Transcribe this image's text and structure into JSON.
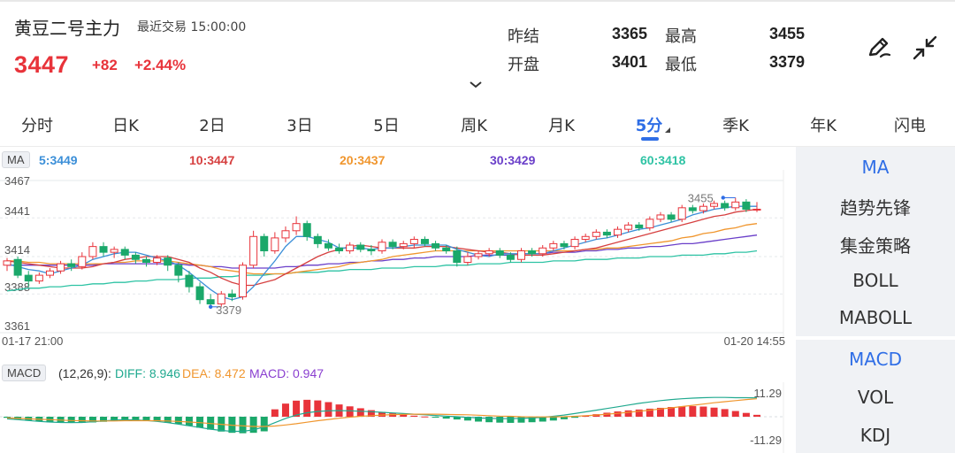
{
  "header": {
    "title": "黄豆二号主力",
    "trade_status": "最近交易  15:00:00",
    "price": "3447",
    "change": "+82",
    "change_pct": "+2.44%"
  },
  "stats": {
    "prev_settle_label": "昨结",
    "prev_settle_value": "3365",
    "high_label": "最高",
    "high_value": "3455",
    "open_label": "开盘",
    "open_value": "3401",
    "low_label": "最低",
    "low_value": "3379"
  },
  "icons": {
    "draw": "pen-draw-icon",
    "fullscreen": "collapse-arrows-icon",
    "expand": "chevron-down-icon"
  },
  "tabs": [
    "分时",
    "日K",
    "2日",
    "3日",
    "5日",
    "周K",
    "月K",
    "5分",
    "季K",
    "年K",
    "闪电"
  ],
  "active_tab": "5分",
  "ma": {
    "badge": "MA",
    "ma5": "5:3449",
    "ma10": "10:3447",
    "ma20": "20:3437",
    "ma30": "30:3429",
    "ma60": "60:3418"
  },
  "colors": {
    "up": "#e8333a",
    "down": "#1aa86a",
    "accent": "#2f6ee6",
    "ma5": "#3b8fd8",
    "ma10": "#d64040",
    "ma20": "#f0962e",
    "ma30": "#6a3fc9",
    "ma60": "#2ec3a4"
  },
  "chart_data": [
    {
      "type": "candlestick",
      "title": "",
      "y_ticks": [
        "3467",
        "3441",
        "3414",
        "3388",
        "3361"
      ],
      "ylim": [
        3361,
        3467
      ],
      "x_start": "01-17 21:00",
      "x_end": "01-20 14:55",
      "high_marker": "3455",
      "low_marker": "3379",
      "candles": [
        [
          3408,
          3411,
          3404,
          3413
        ],
        [
          3412,
          3401,
          3399,
          3414
        ],
        [
          3401,
          3397,
          3393,
          3404
        ],
        [
          3397,
          3401,
          3395,
          3403
        ],
        [
          3401,
          3404,
          3399,
          3406
        ],
        [
          3404,
          3409,
          3402,
          3411
        ],
        [
          3409,
          3407,
          3404,
          3412
        ],
        [
          3407,
          3414,
          3405,
          3417
        ],
        [
          3414,
          3421,
          3412,
          3424
        ],
        [
          3421,
          3417,
          3414,
          3424
        ],
        [
          3417,
          3419,
          3413,
          3421
        ],
        [
          3419,
          3415,
          3412,
          3421
        ],
        [
          3415,
          3412,
          3409,
          3417
        ],
        [
          3412,
          3410,
          3407,
          3414
        ],
        [
          3410,
          3413,
          3408,
          3415
        ],
        [
          3413,
          3408,
          3404,
          3415
        ],
        [
          3408,
          3401,
          3396,
          3410
        ],
        [
          3401,
          3393,
          3389,
          3404
        ],
        [
          3393,
          3384,
          3381,
          3396
        ],
        [
          3384,
          3381,
          3379,
          3388
        ],
        [
          3381,
          3388,
          3379,
          3390
        ],
        [
          3388,
          3386,
          3383,
          3391
        ],
        [
          3386,
          3408,
          3384,
          3410
        ],
        [
          3408,
          3428,
          3406,
          3432
        ],
        [
          3428,
          3418,
          3414,
          3430
        ],
        [
          3418,
          3427,
          3416,
          3431
        ],
        [
          3427,
          3432,
          3424,
          3435
        ],
        [
          3432,
          3437,
          3429,
          3442
        ],
        [
          3437,
          3428,
          3425,
          3439
        ],
        [
          3428,
          3423,
          3420,
          3430
        ],
        [
          3423,
          3420,
          3418,
          3426
        ],
        [
          3420,
          3418,
          3416,
          3423
        ],
        [
          3418,
          3422,
          3416,
          3424
        ],
        [
          3422,
          3419,
          3417,
          3424
        ],
        [
          3419,
          3418,
          3415,
          3422
        ],
        [
          3418,
          3424,
          3416,
          3426
        ],
        [
          3424,
          3421,
          3419,
          3426
        ],
        [
          3421,
          3423,
          3419,
          3425
        ],
        [
          3423,
          3426,
          3420,
          3428
        ],
        [
          3426,
          3423,
          3421,
          3428
        ],
        [
          3423,
          3420,
          3418,
          3425
        ],
        [
          3420,
          3418,
          3416,
          3422
        ],
        [
          3418,
          3410,
          3407,
          3421
        ],
        [
          3410,
          3414,
          3408,
          3417
        ],
        [
          3414,
          3416,
          3412,
          3418
        ],
        [
          3416,
          3418,
          3414,
          3420
        ],
        [
          3418,
          3415,
          3413,
          3420
        ],
        [
          3415,
          3412,
          3410,
          3417
        ],
        [
          3412,
          3418,
          3410,
          3420
        ],
        [
          3418,
          3416,
          3414,
          3420
        ],
        [
          3416,
          3420,
          3414,
          3422
        ],
        [
          3420,
          3423,
          3418,
          3425
        ],
        [
          3423,
          3421,
          3419,
          3425
        ],
        [
          3421,
          3426,
          3419,
          3428
        ],
        [
          3426,
          3428,
          3424,
          3430
        ],
        [
          3428,
          3431,
          3426,
          3433
        ],
        [
          3431,
          3429,
          3427,
          3433
        ],
        [
          3429,
          3433,
          3427,
          3435
        ],
        [
          3433,
          3436,
          3431,
          3438
        ],
        [
          3436,
          3434,
          3432,
          3438
        ],
        [
          3434,
          3440,
          3432,
          3442
        ],
        [
          3440,
          3443,
          3438,
          3445
        ],
        [
          3443,
          3440,
          3438,
          3445
        ],
        [
          3440,
          3448,
          3438,
          3450
        ],
        [
          3448,
          3446,
          3444,
          3450
        ],
        [
          3446,
          3449,
          3444,
          3451
        ],
        [
          3449,
          3451,
          3447,
          3453
        ],
        [
          3451,
          3448,
          3446,
          3453
        ],
        [
          3448,
          3452,
          3446,
          3455
        ],
        [
          3452,
          3447,
          3445,
          3454
        ],
        [
          3447,
          3447,
          3445,
          3452
        ]
      ],
      "ma5": [
        3409,
        3407,
        3405,
        3404,
        3402,
        3404,
        3406,
        3408,
        3412,
        3414,
        3416,
        3417,
        3417,
        3415,
        3413,
        3411,
        3408,
        3403,
        3397,
        3391,
        3386,
        3384,
        3386,
        3393,
        3402,
        3411,
        3421,
        3428,
        3428,
        3426,
        3424,
        3420,
        3420,
        3420,
        3419,
        3420,
        3420,
        3421,
        3422,
        3422,
        3422,
        3422,
        3419,
        3417,
        3415,
        3414,
        3416,
        3416,
        3416,
        3416,
        3416,
        3418,
        3420,
        3422,
        3424,
        3426,
        3427,
        3429,
        3431,
        3433,
        3434,
        3436,
        3438,
        3440,
        3443,
        3445,
        3447,
        3448,
        3449,
        3449,
        3449
      ],
      "ma10": [
        3411,
        3410,
        3409,
        3408,
        3407,
        3406,
        3406,
        3406,
        3407,
        3409,
        3410,
        3412,
        3413,
        3414,
        3414,
        3414,
        3412,
        3410,
        3406,
        3403,
        3399,
        3396,
        3394,
        3394,
        3396,
        3398,
        3402,
        3406,
        3410,
        3414,
        3417,
        3419,
        3421,
        3422,
        3421,
        3420,
        3420,
        3420,
        3420,
        3421,
        3421,
        3421,
        3420,
        3419,
        3418,
        3417,
        3417,
        3416,
        3415,
        3415,
        3415,
        3416,
        3417,
        3418,
        3419,
        3420,
        3422,
        3424,
        3426,
        3428,
        3430,
        3432,
        3434,
        3436,
        3438,
        3440,
        3442,
        3443,
        3445,
        3446,
        3447
      ],
      "ma20": [
        3411,
        3411,
        3410,
        3410,
        3409,
        3409,
        3409,
        3409,
        3409,
        3409,
        3410,
        3410,
        3411,
        3411,
        3411,
        3411,
        3410,
        3409,
        3408,
        3407,
        3405,
        3404,
        3403,
        3402,
        3402,
        3402,
        3402,
        3403,
        3404,
        3405,
        3406,
        3407,
        3409,
        3410,
        3411,
        3412,
        3414,
        3415,
        3416,
        3417,
        3418,
        3418,
        3418,
        3418,
        3418,
        3418,
        3418,
        3418,
        3418,
        3418,
        3418,
        3418,
        3418,
        3418,
        3419,
        3419,
        3420,
        3420,
        3421,
        3422,
        3423,
        3424,
        3425,
        3427,
        3428,
        3430,
        3431,
        3433,
        3434,
        3436,
        3437
      ],
      "ma30": [
        3408,
        3408,
        3408,
        3408,
        3408,
        3408,
        3408,
        3408,
        3408,
        3409,
        3409,
        3409,
        3409,
        3409,
        3409,
        3409,
        3409,
        3408,
        3408,
        3407,
        3407,
        3406,
        3406,
        3406,
        3406,
        3406,
        3407,
        3407,
        3408,
        3408,
        3409,
        3409,
        3410,
        3410,
        3411,
        3411,
        3412,
        3412,
        3413,
        3413,
        3414,
        3414,
        3414,
        3414,
        3415,
        3415,
        3415,
        3415,
        3416,
        3416,
        3416,
        3417,
        3417,
        3417,
        3418,
        3418,
        3419,
        3419,
        3420,
        3420,
        3421,
        3421,
        3422,
        3423,
        3423,
        3424,
        3425,
        3426,
        3427,
        3428,
        3429
      ],
      "ma60": [
        3390,
        3391,
        3392,
        3392,
        3393,
        3393,
        3394,
        3394,
        3395,
        3395,
        3396,
        3396,
        3397,
        3397,
        3398,
        3398,
        3398,
        3399,
        3399,
        3399,
        3400,
        3400,
        3401,
        3401,
        3401,
        3402,
        3402,
        3403,
        3403,
        3403,
        3404,
        3404,
        3405,
        3405,
        3405,
        3406,
        3406,
        3406,
        3407,
        3407,
        3407,
        3408,
        3408,
        3408,
        3409,
        3409,
        3409,
        3410,
        3410,
        3410,
        3410,
        3411,
        3411,
        3411,
        3412,
        3412,
        3412,
        3413,
        3413,
        3413,
        3414,
        3414,
        3414,
        3415,
        3415,
        3415,
        3416,
        3416,
        3417,
        3417,
        3418
      ]
    },
    {
      "type": "bar",
      "title": "MACD",
      "params": "(12,26,9):",
      "diff": "DIFF: 8.946",
      "dea": "DEA: 8.472",
      "macd": "MACD: 0.947",
      "y_ticks": [
        "11.29",
        "-11.29"
      ],
      "ylim": [
        -11.29,
        11.29
      ],
      "histogram": [
        -0.5,
        -1.2,
        -1.8,
        -2.3,
        -2.6,
        -2.8,
        -2.9,
        -2.9,
        -2.7,
        -2.4,
        -2.0,
        -1.8,
        -1.8,
        -2.0,
        -2.3,
        -2.8,
        -3.5,
        -4.3,
        -5.2,
        -6.1,
        -7.0,
        -7.6,
        -7.8,
        -7.6,
        -6.9,
        3.5,
        6.2,
        7.6,
        8.0,
        7.7,
        6.9,
        5.8,
        4.9,
        4.0,
        3.1,
        2.3,
        1.6,
        1.0,
        0.5,
        0.1,
        -0.4,
        -0.9,
        -1.3,
        -1.8,
        -2.3,
        -2.6,
        -2.8,
        -2.9,
        -2.8,
        -2.6,
        -2.3,
        -1.8,
        -1.2,
        -0.5,
        0.4,
        1.2,
        1.9,
        2.5,
        3.0,
        3.4,
        3.8,
        4.2,
        4.6,
        4.9,
        5.0,
        4.8,
        4.3,
        3.6,
        2.7,
        1.8,
        0.9
      ],
      "diff_line": [
        -1.0,
        -1.4,
        -1.8,
        -2.2,
        -2.5,
        -2.7,
        -2.8,
        -2.7,
        -2.4,
        -2.0,
        -1.6,
        -1.4,
        -1.5,
        -1.8,
        -2.2,
        -2.8,
        -3.5,
        -4.3,
        -5.1,
        -5.9,
        -6.5,
        -6.9,
        -6.9,
        -6.2,
        -4.8,
        -2.8,
        -0.8,
        0.8,
        1.9,
        2.5,
        2.8,
        2.9,
        2.8,
        2.6,
        2.4,
        2.1,
        1.8,
        1.5,
        1.2,
        0.9,
        0.6,
        0.3,
        0.0,
        -0.3,
        -0.6,
        -0.8,
        -0.9,
        -0.9,
        -0.8,
        -0.6,
        -0.3,
        0.2,
        0.8,
        1.5,
        2.3,
        3.1,
        3.9,
        4.7,
        5.5,
        6.3,
        7.0,
        7.6,
        8.1,
        8.5,
        8.8,
        9.0,
        9.1,
        9.1,
        9.0,
        9.0,
        8.9
      ],
      "dea_line": [
        -0.6,
        -0.8,
        -1.0,
        -1.2,
        -1.4,
        -1.6,
        -1.8,
        -1.9,
        -2.0,
        -2.0,
        -2.0,
        -1.9,
        -1.9,
        -1.9,
        -1.9,
        -2.0,
        -2.2,
        -2.5,
        -2.8,
        -3.2,
        -3.6,
        -4.0,
        -4.3,
        -4.6,
        -4.6,
        -4.4,
        -3.9,
        -3.3,
        -2.6,
        -1.9,
        -1.3,
        -0.7,
        -0.2,
        0.2,
        0.5,
        0.8,
        1.0,
        1.1,
        1.2,
        1.2,
        1.2,
        1.1,
        1.0,
        0.9,
        0.7,
        0.5,
        0.3,
        0.2,
        0.0,
        -0.1,
        -0.1,
        -0.1,
        0.0,
        0.2,
        0.5,
        0.8,
        1.2,
        1.6,
        2.1,
        2.6,
        3.1,
        3.7,
        4.2,
        4.8,
        5.4,
        6.0,
        6.6,
        7.1,
        7.6,
        8.1,
        8.5
      ]
    }
  ],
  "side_panel_top": [
    "MA",
    "趋势先锋",
    "集金策略",
    "BOLL",
    "MABOLL"
  ],
  "side_panel_bottom": [
    "MACD",
    "VOL",
    "KDJ"
  ]
}
